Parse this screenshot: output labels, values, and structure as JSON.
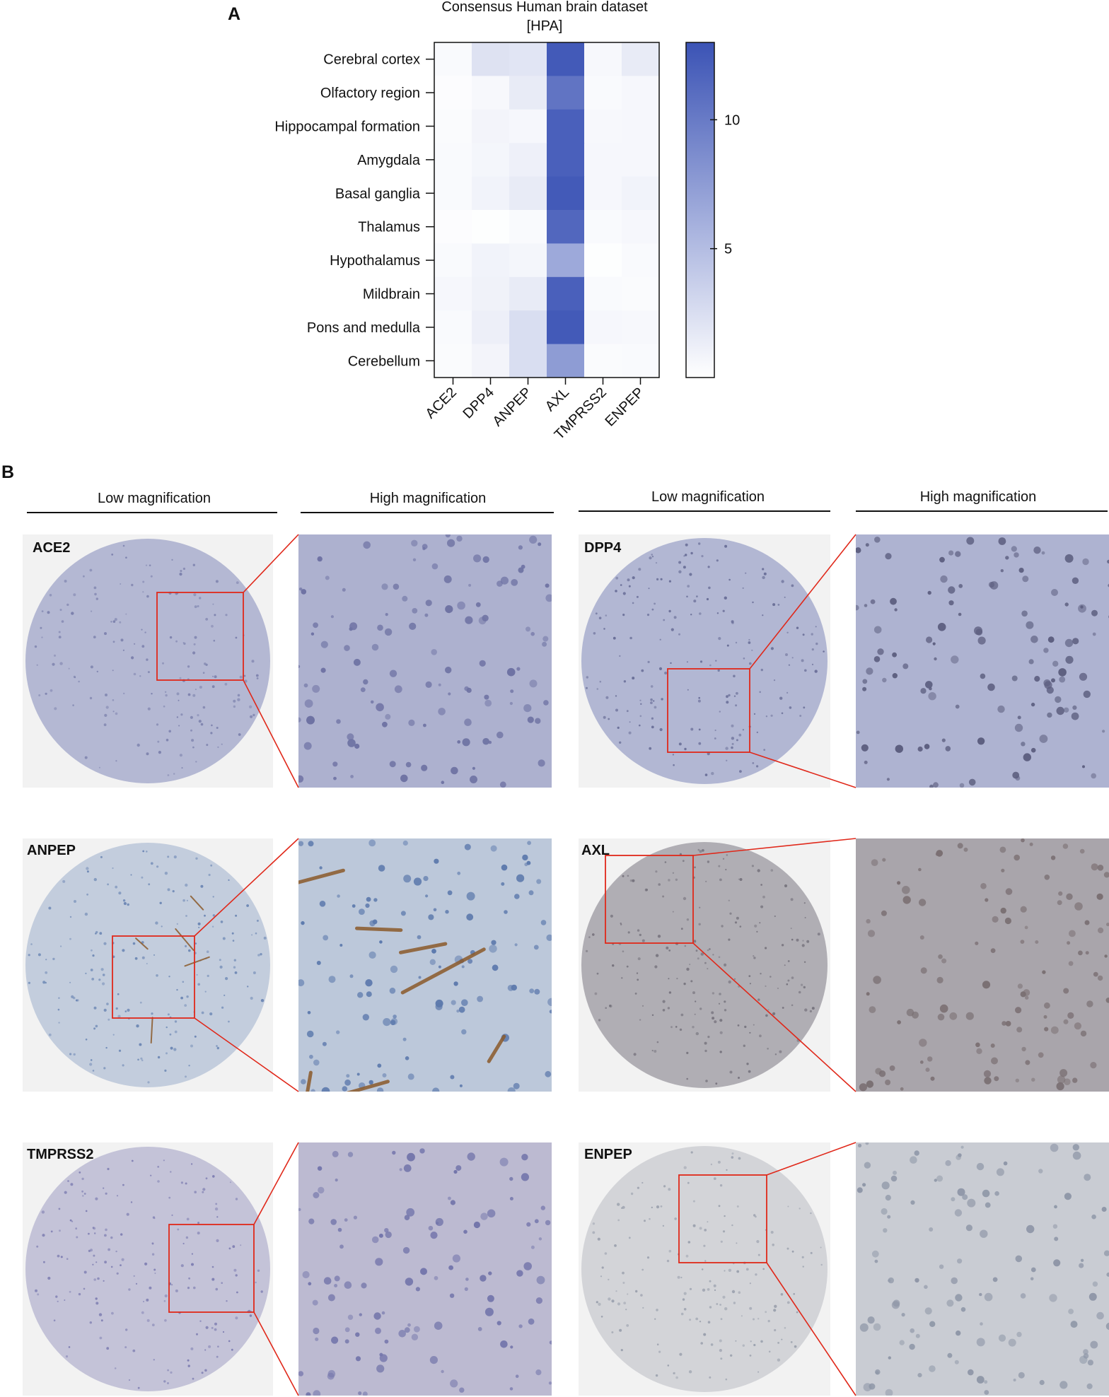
{
  "panel_a": {
    "label": "A",
    "title_line1": "Consensus Human brain dataset",
    "title_line2": "[HPA]"
  },
  "panel_b": {
    "label": "B",
    "low_label": "Low magnification",
    "high_label": "High magnification",
    "rows": [
      {
        "left": "ACE2",
        "right": "DPP4"
      },
      {
        "left": "ANPEP",
        "right": "AXL"
      },
      {
        "left": "TMPRSS2",
        "right": "ENPEP"
      }
    ]
  },
  "chart_data": {
    "type": "heatmap",
    "title": "Consensus Human brain dataset [HPA]",
    "rows": [
      "Cerebral cortex",
      "Olfactory region",
      "Hippocampal formation",
      "Amygdala",
      "Basal ganglia",
      "Thalamus",
      "Hypothalamus",
      "Mildbrain",
      "Pons and medulla",
      "Cerebellum"
    ],
    "columns": [
      "ACE2",
      "DPP4",
      "ANPEP",
      "AXL",
      "TMPRSS2",
      "ENPEP"
    ],
    "values": [
      [
        0.4,
        2.2,
        2.0,
        12.5,
        0.5,
        1.5
      ],
      [
        0.2,
        0.5,
        1.5,
        10.5,
        0.4,
        0.6
      ],
      [
        0.3,
        0.8,
        0.6,
        12.0,
        0.5,
        0.6
      ],
      [
        0.4,
        0.7,
        1.1,
        12.0,
        0.6,
        0.6
      ],
      [
        0.4,
        0.9,
        1.5,
        12.5,
        0.6,
        0.9
      ],
      [
        0.2,
        0.1,
        0.4,
        11.5,
        0.4,
        0.6
      ],
      [
        0.4,
        0.9,
        0.7,
        6.5,
        0.1,
        0.4
      ],
      [
        0.6,
        1.0,
        1.5,
        12.0,
        0.4,
        0.3
      ],
      [
        0.4,
        1.2,
        2.5,
        12.5,
        0.6,
        0.5
      ],
      [
        0.3,
        0.8,
        2.5,
        7.5,
        0.3,
        0.4
      ]
    ],
    "colorbar": {
      "ticks": [
        5,
        10
      ],
      "range": [
        0,
        13
      ],
      "low_color": "#ffffff",
      "high_color": "#3b53b5"
    }
  },
  "colors": {
    "heat_high": "#3b53b5",
    "zoom_box": "#e0281a",
    "he_tissue": "#adb3d2",
    "dab_brown": "#8b5a2b"
  }
}
